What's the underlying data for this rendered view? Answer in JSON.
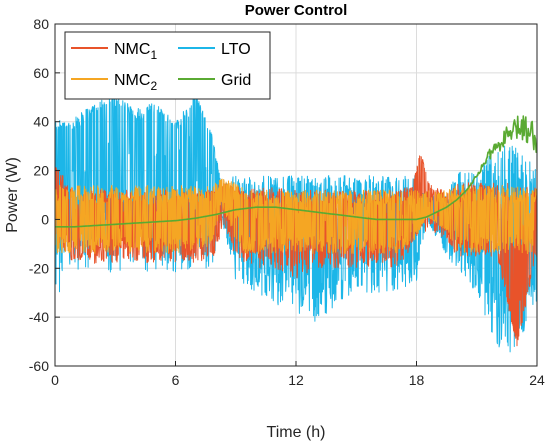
{
  "chart_data": {
    "type": "line",
    "title": "Power Control",
    "xlabel": "Time (h)",
    "ylabel": "Power (W)",
    "xlim": [
      0,
      24
    ],
    "ylim": [
      -60,
      80
    ],
    "xticks": [
      0,
      6,
      12,
      18,
      24
    ],
    "yticks": [
      -60,
      -40,
      -20,
      0,
      20,
      40,
      60,
      80
    ],
    "grid": true,
    "legend_position": "top-left",
    "legend_columns": 2,
    "series": [
      {
        "name": "NMC",
        "name_subscript": "1",
        "color": "#e8532a",
        "noisy": true,
        "x": [
          0,
          1,
          2,
          3,
          4,
          5,
          6,
          7,
          7.8,
          8.3,
          9,
          9.5,
          10,
          11,
          12,
          13,
          14,
          15,
          16,
          17,
          17.8,
          18.2,
          18.7,
          19.5,
          20,
          21,
          22,
          23,
          24
        ],
        "y": [
          20,
          -8,
          0,
          0,
          0,
          0,
          0,
          0,
          0,
          10,
          5,
          0,
          0,
          0,
          -5,
          0,
          0,
          0,
          0,
          0,
          10,
          25,
          5,
          0,
          0,
          0,
          0,
          -50,
          0
        ],
        "upper": [
          22,
          12,
          12,
          12,
          12,
          12,
          12,
          12,
          12,
          15,
          14,
          12,
          13,
          13,
          12,
          12,
          12,
          12,
          12,
          12,
          14,
          28,
          14,
          12,
          15,
          15,
          15,
          15,
          15
        ],
        "lower": [
          -10,
          -18,
          -18,
          -18,
          -18,
          -18,
          -18,
          -18,
          -18,
          -5,
          -15,
          -18,
          -20,
          -20,
          -25,
          -20,
          -20,
          -20,
          -20,
          -20,
          -12,
          -5,
          -5,
          -8,
          -15,
          -15,
          -15,
          -52,
          -15
        ]
      },
      {
        "name": "NMC",
        "name_subscript": "2",
        "color": "#f5a623",
        "noisy": true,
        "x": [
          0,
          1,
          2,
          3,
          4,
          5,
          6,
          7,
          7.8,
          8.3,
          9,
          9.5,
          10,
          11,
          12,
          13,
          14,
          15,
          16,
          17,
          18,
          18.5,
          19.5,
          20,
          21,
          22,
          23,
          24
        ],
        "y": [
          0,
          0,
          0,
          0,
          0,
          0,
          0,
          0,
          0,
          12,
          5,
          0,
          0,
          0,
          0,
          0,
          0,
          0,
          0,
          0,
          0,
          0,
          0,
          0,
          0,
          0,
          0,
          0
        ],
        "upper": [
          14,
          14,
          14,
          14,
          14,
          14,
          14,
          14,
          14,
          17,
          15,
          12,
          12,
          12,
          12,
          12,
          12,
          12,
          12,
          12,
          12,
          12,
          12,
          14,
          14,
          14,
          14,
          14
        ],
        "lower": [
          -14,
          -14,
          -14,
          -14,
          -14,
          -14,
          -14,
          -14,
          -10,
          5,
          -10,
          -14,
          -14,
          -14,
          -14,
          -14,
          -14,
          -14,
          -14,
          -14,
          -8,
          2,
          -5,
          -14,
          -14,
          -14,
          -14,
          -14
        ]
      },
      {
        "name": "LTO",
        "color": "#1cb6e8",
        "noisy": true,
        "x": [
          0,
          0.5,
          1,
          2,
          3,
          4,
          5,
          6,
          7,
          7.8,
          8.3,
          9,
          10,
          11,
          12,
          13,
          14,
          15,
          16,
          17,
          18,
          18.5,
          19.5,
          20,
          21,
          22,
          23,
          24
        ],
        "y": [
          30,
          35,
          28,
          40,
          46,
          32,
          40,
          30,
          45,
          30,
          8,
          0,
          0,
          0,
          0,
          0,
          0,
          0,
          0,
          0,
          0,
          0,
          0,
          0,
          0,
          0,
          0,
          0
        ],
        "upper": [
          42,
          40,
          42,
          48,
          52,
          45,
          48,
          40,
          52,
          35,
          15,
          18,
          18,
          18,
          18,
          18,
          18,
          18,
          18,
          18,
          18,
          10,
          10,
          20,
          20,
          30,
          30,
          20
        ],
        "lower": [
          -40,
          -20,
          -22,
          -22,
          -22,
          -22,
          -22,
          -22,
          -22,
          -20,
          0,
          -25,
          -30,
          -35,
          -38,
          -42,
          -35,
          -30,
          -30,
          -30,
          -25,
          0,
          -15,
          -20,
          -30,
          -55,
          -55,
          -35
        ]
      },
      {
        "name": "Grid",
        "color": "#5aaa32",
        "noisy": false,
        "x": [
          0,
          1,
          2,
          3,
          4,
          5,
          6,
          7,
          8,
          8.5,
          9,
          10,
          11,
          12,
          13,
          14,
          15,
          16,
          17,
          18,
          18.5,
          19,
          19.5,
          20,
          20.5,
          21,
          21.5,
          22,
          22.5,
          23,
          23.3,
          23.7,
          24
        ],
        "y": [
          -3,
          -3,
          -2.5,
          -2,
          -1.5,
          -1,
          -0.5,
          0.5,
          2,
          3,
          4,
          5,
          5,
          4,
          3,
          2,
          1,
          0,
          0,
          0,
          1,
          3,
          5,
          8,
          12,
          18,
          25,
          30,
          34,
          37,
          38,
          36,
          34
        ]
      }
    ]
  }
}
